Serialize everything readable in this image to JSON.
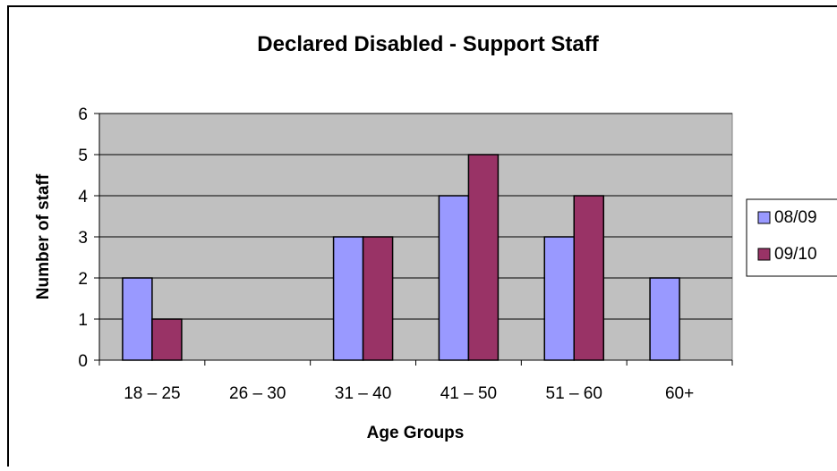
{
  "chart_data": {
    "type": "bar",
    "title": "Declared Disabled - Support Staff",
    "xlabel": "Age Groups",
    "ylabel": "Number of staff",
    "categories": [
      "18 – 25",
      "26 – 30",
      "31 – 40",
      "41 – 50",
      "51 – 60",
      "60+"
    ],
    "series": [
      {
        "name": "08/09",
        "values": [
          2,
          0,
          3,
          4,
          3,
          2
        ],
        "color": "#9999ff"
      },
      {
        "name": "09/10",
        "values": [
          1,
          0,
          3,
          5,
          4,
          0
        ],
        "color": "#993366"
      }
    ],
    "ylim": [
      0,
      6
    ],
    "yticks": [
      0,
      1,
      2,
      3,
      4,
      5,
      6
    ],
    "plot_background": "#c0c0c0",
    "grid": true,
    "legend_position": "right"
  }
}
